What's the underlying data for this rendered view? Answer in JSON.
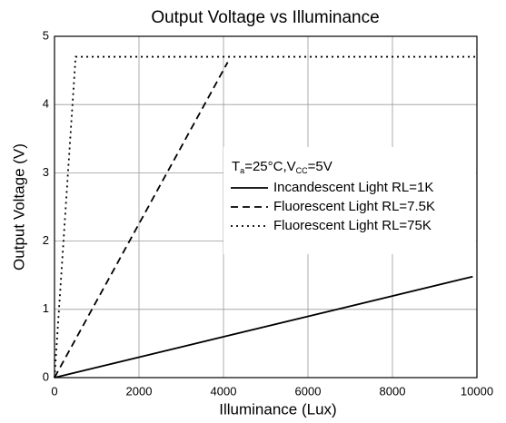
{
  "chart_data": {
    "type": "line",
    "title": "Output Voltage vs Illuminance",
    "xlabel": "Illuminance (Lux)",
    "ylabel": "Output Voltage (V)",
    "xlim": [
      0,
      10000
    ],
    "ylim": [
      0,
      5
    ],
    "xticks": [
      0,
      2000,
      4000,
      6000,
      8000,
      10000
    ],
    "yticks": [
      0,
      1,
      2,
      3,
      4,
      5
    ],
    "grid": true,
    "annotation": [
      {
        "text": "T"
      },
      {
        "text": "a",
        "sub": true
      },
      {
        "text": "=25°C,V"
      },
      {
        "text": "CC",
        "sub": true
      },
      {
        "text": "=5V"
      }
    ],
    "series": [
      {
        "name": "Incandescent Light RL=1K",
        "color": "#000000",
        "dash": "solid",
        "x": [
          0,
          9900
        ],
        "values": [
          0,
          1.48
        ]
      },
      {
        "name": "Fluorescent Light RL=7.5K",
        "color": "#000000",
        "dash": "dashed",
        "x": [
          0,
          4100
        ],
        "values": [
          0,
          4.62
        ]
      },
      {
        "name": "Fluorescent Light RL=75K",
        "color": "#000000",
        "dash": "dotted",
        "x": [
          0,
          500,
          10000
        ],
        "values": [
          0,
          4.7,
          4.7
        ]
      }
    ]
  }
}
